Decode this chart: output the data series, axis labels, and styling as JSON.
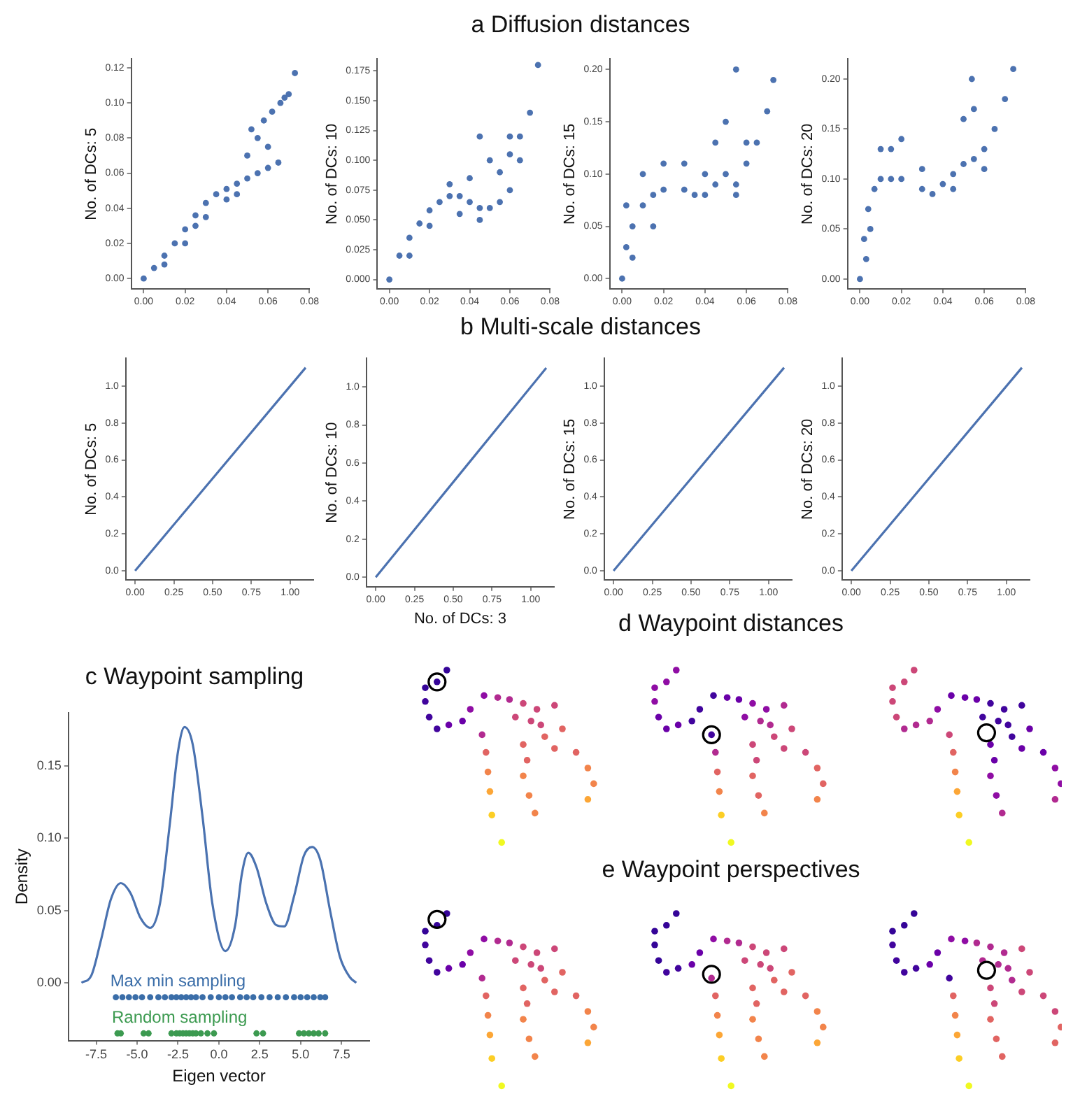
{
  "chart_data": [
    {
      "type": "other",
      "title": "a Diffusion distances"
    },
    {
      "type": "scatter",
      "ylabel": "No. of DCs: 5",
      "marker": "circle",
      "xlim": [
        -0.006,
        0.08
      ],
      "ylim": [
        -0.006,
        0.125
      ],
      "xticks": [
        {
          "value": 0,
          "label": "0.00"
        },
        {
          "value": 0.02,
          "label": "0.02"
        },
        {
          "value": 0.04,
          "label": "0.04"
        },
        {
          "value": 0.06,
          "label": "0.06"
        },
        {
          "value": 0.08,
          "label": "0.08"
        }
      ],
      "yticks": [
        {
          "value": 0,
          "label": "0.00"
        },
        {
          "value": 0.02,
          "label": "0.02"
        },
        {
          "value": 0.04,
          "label": "0.04"
        },
        {
          "value": 0.06,
          "label": "0.06"
        },
        {
          "value": 0.08,
          "label": "0.08"
        },
        {
          "value": 0.1,
          "label": "0.10"
        },
        {
          "value": 0.12,
          "label": "0.12"
        }
      ],
      "series": [
        {
          "color": "#4c72b0",
          "x": [
            0,
            0.005,
            0.01,
            0.015,
            0.02,
            0.025,
            0.03,
            0.035,
            0.04,
            0.045,
            0.05,
            0.055,
            0.06,
            0.065,
            0.05,
            0.055,
            0.058,
            0.062,
            0.066,
            0.07,
            0.073,
            0.02,
            0.03,
            0.01,
            0.045,
            0.052,
            0.06,
            0.068,
            0.04,
            0.025
          ],
          "values": [
            0,
            0.006,
            0.013,
            0.02,
            0.028,
            0.036,
            0.043,
            0.048,
            0.051,
            0.054,
            0.057,
            0.06,
            0.063,
            0.066,
            0.07,
            0.08,
            0.09,
            0.095,
            0.1,
            0.105,
            0.117,
            0.02,
            0.035,
            0.008,
            0.048,
            0.085,
            0.075,
            0.103,
            0.045,
            0.03
          ]
        }
      ]
    },
    {
      "type": "scatter",
      "ylabel": "No. of DCs: 10",
      "marker": "circle",
      "xlim": [
        -0.006,
        0.08
      ],
      "ylim": [
        -0.008,
        0.185
      ],
      "xticks": [
        {
          "value": 0,
          "label": "0.00"
        },
        {
          "value": 0.02,
          "label": "0.02"
        },
        {
          "value": 0.04,
          "label": "0.04"
        },
        {
          "value": 0.06,
          "label": "0.06"
        },
        {
          "value": 0.08,
          "label": "0.08"
        }
      ],
      "yticks": [
        {
          "value": 0,
          "label": "0.000"
        },
        {
          "value": 0.025,
          "label": "0.025"
        },
        {
          "value": 0.05,
          "label": "0.050"
        },
        {
          "value": 0.075,
          "label": "0.075"
        },
        {
          "value": 0.1,
          "label": "0.100"
        },
        {
          "value": 0.125,
          "label": "0.125"
        },
        {
          "value": 0.15,
          "label": "0.150"
        },
        {
          "value": 0.175,
          "label": "0.175"
        }
      ],
      "series": [
        {
          "color": "#4c72b0",
          "x": [
            0,
            0.005,
            0.01,
            0.015,
            0.02,
            0.025,
            0.03,
            0.035,
            0.04,
            0.045,
            0.05,
            0.055,
            0.06,
            0.065,
            0.07,
            0.074,
            0.045,
            0.05,
            0.06,
            0.055,
            0.04,
            0.03,
            0.02,
            0.01,
            0.045,
            0.06,
            0.065,
            0.035
          ],
          "values": [
            0,
            0.02,
            0.035,
            0.047,
            0.058,
            0.065,
            0.07,
            0.07,
            0.065,
            0.06,
            0.06,
            0.065,
            0.075,
            0.1,
            0.14,
            0.18,
            0.12,
            0.1,
            0.12,
            0.09,
            0.085,
            0.08,
            0.045,
            0.02,
            0.05,
            0.105,
            0.12,
            0.055
          ]
        }
      ]
    },
    {
      "type": "scatter",
      "ylabel": "No. of DCs: 15",
      "marker": "circle",
      "xlim": [
        -0.006,
        0.08
      ],
      "ylim": [
        -0.01,
        0.21
      ],
      "xticks": [
        {
          "value": 0,
          "label": "0.00"
        },
        {
          "value": 0.02,
          "label": "0.02"
        },
        {
          "value": 0.04,
          "label": "0.04"
        },
        {
          "value": 0.06,
          "label": "0.06"
        },
        {
          "value": 0.08,
          "label": "0.08"
        }
      ],
      "yticks": [
        {
          "value": 0,
          "label": "0.00"
        },
        {
          "value": 0.05,
          "label": "0.05"
        },
        {
          "value": 0.1,
          "label": "0.10"
        },
        {
          "value": 0.15,
          "label": "0.15"
        },
        {
          "value": 0.2,
          "label": "0.20"
        }
      ],
      "series": [
        {
          "color": "#4c72b0",
          "x": [
            0,
            0.002,
            0.005,
            0.01,
            0.015,
            0.02,
            0.03,
            0.035,
            0.04,
            0.045,
            0.05,
            0.055,
            0.06,
            0.065,
            0.07,
            0.073,
            0.055,
            0.05,
            0.045,
            0.02,
            0.01,
            0.005,
            0.03,
            0.04,
            0.055,
            0.06,
            0.002,
            0.015
          ],
          "values": [
            0,
            0.03,
            0.05,
            0.07,
            0.08,
            0.085,
            0.085,
            0.08,
            0.08,
            0.09,
            0.1,
            0.09,
            0.11,
            0.13,
            0.16,
            0.19,
            0.2,
            0.15,
            0.13,
            0.11,
            0.1,
            0.02,
            0.11,
            0.1,
            0.08,
            0.13,
            0.07,
            0.05
          ]
        }
      ]
    },
    {
      "type": "scatter",
      "ylabel": "No. of DCs: 20",
      "marker": "circle",
      "xlim": [
        -0.006,
        0.08
      ],
      "ylim": [
        -0.01,
        0.22
      ],
      "xticks": [
        {
          "value": 0,
          "label": "0.00"
        },
        {
          "value": 0.02,
          "label": "0.02"
        },
        {
          "value": 0.04,
          "label": "0.04"
        },
        {
          "value": 0.06,
          "label": "0.06"
        },
        {
          "value": 0.08,
          "label": "0.08"
        }
      ],
      "yticks": [
        {
          "value": 0,
          "label": "0.00"
        },
        {
          "value": 0.05,
          "label": "0.05"
        },
        {
          "value": 0.1,
          "label": "0.10"
        },
        {
          "value": 0.15,
          "label": "0.15"
        },
        {
          "value": 0.2,
          "label": "0.20"
        }
      ],
      "series": [
        {
          "color": "#4c72b0",
          "x": [
            0,
            0.002,
            0.004,
            0.007,
            0.01,
            0.015,
            0.02,
            0.03,
            0.035,
            0.04,
            0.045,
            0.05,
            0.055,
            0.06,
            0.065,
            0.07,
            0.074,
            0.054,
            0.05,
            0.055,
            0.02,
            0.01,
            0.003,
            0.005,
            0.03,
            0.06,
            0.045,
            0.015
          ],
          "values": [
            0,
            0.04,
            0.07,
            0.09,
            0.1,
            0.1,
            0.1,
            0.09,
            0.085,
            0.095,
            0.105,
            0.115,
            0.12,
            0.13,
            0.15,
            0.18,
            0.21,
            0.2,
            0.16,
            0.17,
            0.14,
            0.13,
            0.02,
            0.05,
            0.11,
            0.11,
            0.09,
            0.13
          ]
        }
      ]
    },
    {
      "type": "other",
      "title": "b Multi-scale distances"
    },
    {
      "type": "line",
      "ylabel": "No. of DCs: 5",
      "xlim": [
        -0.06,
        1.15
      ],
      "ylim": [
        -0.05,
        1.15
      ],
      "xticks": [
        {
          "value": 0,
          "label": "0.00"
        },
        {
          "value": 0.25,
          "label": "0.25"
        },
        {
          "value": 0.5,
          "label": "0.50"
        },
        {
          "value": 0.75,
          "label": "0.75"
        },
        {
          "value": 1,
          "label": "1.00"
        }
      ],
      "yticks": [
        {
          "value": 0,
          "label": "0.0"
        },
        {
          "value": 0.2,
          "label": "0.2"
        },
        {
          "value": 0.4,
          "label": "0.4"
        },
        {
          "value": 0.6,
          "label": "0.6"
        },
        {
          "value": 0.8,
          "label": "0.8"
        },
        {
          "value": 1,
          "label": "1.0"
        }
      ],
      "series": [
        {
          "color": "#4c72b0",
          "x": [
            0,
            1.1
          ],
          "values": [
            0,
            1.1
          ]
        }
      ]
    },
    {
      "type": "line",
      "ylabel": "No. of DCs: 10",
      "xlabel": "No. of DCs: 3",
      "xlim": [
        -0.06,
        1.15
      ],
      "ylim": [
        -0.05,
        1.15
      ],
      "xticks": [
        {
          "value": 0,
          "label": "0.00"
        },
        {
          "value": 0.25,
          "label": "0.25"
        },
        {
          "value": 0.5,
          "label": "0.50"
        },
        {
          "value": 0.75,
          "label": "0.75"
        },
        {
          "value": 1,
          "label": "1.00"
        }
      ],
      "yticks": [
        {
          "value": 0,
          "label": "0.0"
        },
        {
          "value": 0.2,
          "label": "0.2"
        },
        {
          "value": 0.4,
          "label": "0.4"
        },
        {
          "value": 0.6,
          "label": "0.6"
        },
        {
          "value": 0.8,
          "label": "0.8"
        },
        {
          "value": 1,
          "label": "1.0"
        }
      ],
      "series": [
        {
          "color": "#4c72b0",
          "x": [
            0,
            1.1
          ],
          "values": [
            0,
            1.1
          ]
        }
      ]
    },
    {
      "type": "line",
      "ylabel": "No. of DCs: 15",
      "xlim": [
        -0.06,
        1.15
      ],
      "ylim": [
        -0.05,
        1.15
      ],
      "xticks": [
        {
          "value": 0,
          "label": "0.00"
        },
        {
          "value": 0.25,
          "label": "0.25"
        },
        {
          "value": 0.5,
          "label": "0.50"
        },
        {
          "value": 0.75,
          "label": "0.75"
        },
        {
          "value": 1,
          "label": "1.00"
        }
      ],
      "yticks": [
        {
          "value": 0,
          "label": "0.0"
        },
        {
          "value": 0.2,
          "label": "0.2"
        },
        {
          "value": 0.4,
          "label": "0.4"
        },
        {
          "value": 0.6,
          "label": "0.6"
        },
        {
          "value": 0.8,
          "label": "0.8"
        },
        {
          "value": 1,
          "label": "1.0"
        }
      ],
      "series": [
        {
          "color": "#4c72b0",
          "x": [
            0,
            1.1
          ],
          "values": [
            0,
            1.1
          ]
        }
      ]
    },
    {
      "type": "line",
      "ylabel": "No. of DCs: 20",
      "xlim": [
        -0.06,
        1.15
      ],
      "ylim": [
        -0.05,
        1.15
      ],
      "xticks": [
        {
          "value": 0,
          "label": "0.00"
        },
        {
          "value": 0.25,
          "label": "0.25"
        },
        {
          "value": 0.5,
          "label": "0.50"
        },
        {
          "value": 0.75,
          "label": "0.75"
        },
        {
          "value": 1,
          "label": "1.00"
        }
      ],
      "yticks": [
        {
          "value": 0,
          "label": "0.0"
        },
        {
          "value": 0.2,
          "label": "0.2"
        },
        {
          "value": 0.4,
          "label": "0.4"
        },
        {
          "value": 0.6,
          "label": "0.6"
        },
        {
          "value": 0.8,
          "label": "0.8"
        },
        {
          "value": 1,
          "label": "1.0"
        }
      ],
      "series": [
        {
          "color": "#4c72b0",
          "x": [
            0,
            1.1
          ],
          "values": [
            0,
            1.1
          ]
        }
      ]
    },
    {
      "type": "line",
      "title": "c Waypoint sampling",
      "xlabel": "Eigen vector",
      "ylabel": "Density",
      "xlim": [
        -9.2,
        9.2
      ],
      "ylim": [
        -0.04,
        0.187
      ],
      "xticks": [
        {
          "value": -7.5,
          "label": "-7.5"
        },
        {
          "value": -5,
          "label": "-5.0"
        },
        {
          "value": -2.5,
          "label": "-2.5"
        },
        {
          "value": 0,
          "label": "0.0"
        },
        {
          "value": 2.5,
          "label": "2.5"
        },
        {
          "value": 5,
          "label": "5.0"
        },
        {
          "value": 7.5,
          "label": "7.5"
        }
      ],
      "yticks": [
        {
          "value": 0,
          "label": "0.00"
        },
        {
          "value": 0.05,
          "label": "0.05"
        },
        {
          "value": 0.1,
          "label": "0.10"
        },
        {
          "value": 0.15,
          "label": "0.15"
        }
      ],
      "series": [
        {
          "color": "#4a72b0",
          "x": [
            -8.4,
            -7.8,
            -7.2,
            -6.6,
            -6.0,
            -5.4,
            -4.8,
            -4.2,
            -3.6,
            -3.0,
            -2.5,
            -2.1,
            -1.6,
            -1.0,
            -0.4,
            0.4,
            1.0,
            1.4,
            1.8,
            2.3,
            2.9,
            3.5,
            4.0,
            4.6,
            5.2,
            5.7,
            6.2,
            6.8,
            7.4,
            8.0,
            8.4
          ],
          "values": [
            0,
            0.005,
            0.03,
            0.058,
            0.069,
            0.062,
            0.045,
            0.038,
            0.055,
            0.11,
            0.16,
            0.177,
            0.165,
            0.115,
            0.055,
            0.022,
            0.04,
            0.075,
            0.09,
            0.08,
            0.055,
            0.04,
            0.039,
            0.06,
            0.088,
            0.094,
            0.085,
            0.05,
            0.018,
            0.004,
            0
          ]
        },
        {
          "type": "scatter",
          "marker": "circle",
          "name": "Max min sampling",
          "color": "#3a6da8",
          "x": [
            -6.3,
            -5.9,
            -5.5,
            -5.1,
            -4.7,
            -4.2,
            -3.7,
            -3.3,
            -2.9,
            -2.6,
            -2.3,
            -2.0,
            -1.7,
            -1.4,
            -1.0,
            -0.5,
            0.0,
            0.4,
            0.8,
            1.3,
            1.7,
            2.1,
            2.6,
            3.1,
            3.6,
            4.1,
            4.6,
            5.0,
            5.4,
            5.8,
            6.2,
            6.5
          ],
          "values": [
            -0.01,
            -0.01,
            -0.01,
            -0.01,
            -0.01,
            -0.01,
            -0.01,
            -0.01,
            -0.01,
            -0.01,
            -0.01,
            -0.01,
            -0.01,
            -0.01,
            -0.01,
            -0.01,
            -0.01,
            -0.01,
            -0.01,
            -0.01,
            -0.01,
            -0.01,
            -0.01,
            -0.01,
            -0.01,
            -0.01,
            -0.01,
            -0.01,
            -0.01,
            -0.01,
            -0.01,
            -0.01
          ]
        },
        {
          "type": "scatter",
          "marker": "circle",
          "name": "Random sampling",
          "color": "#3c9a50",
          "x": [
            -6.2,
            -6.0,
            -4.6,
            -4.3,
            -2.9,
            -2.6,
            -2.4,
            -2.2,
            -2.0,
            -1.8,
            -1.6,
            -1.4,
            -1.1,
            -0.7,
            -0.3,
            2.3,
            2.7,
            4.9,
            5.2,
            5.5,
            5.8,
            6.1,
            6.5
          ],
          "values": [
            -0.035,
            -0.035,
            -0.035,
            -0.035,
            -0.035,
            -0.035,
            -0.035,
            -0.035,
            -0.035,
            -0.035,
            -0.035,
            -0.035,
            -0.035,
            -0.035,
            -0.035,
            -0.035,
            -0.035,
            -0.035,
            -0.035,
            -0.035,
            -0.035,
            -0.035,
            -0.035
          ]
        }
      ]
    },
    {
      "type": "other",
      "title": "d Waypoint distances"
    },
    {
      "type": "other",
      "title": "e Waypoint perspectives"
    }
  ]
}
